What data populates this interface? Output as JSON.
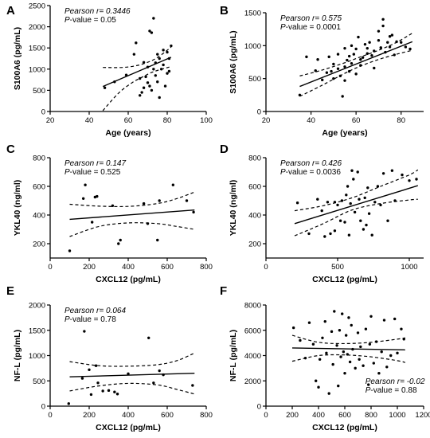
{
  "chart_data": [
    {
      "type": "scatter",
      "panel": "A",
      "xlabel": "Age (years)",
      "ylabel": "S100A6 (pg/mL)",
      "xlim": [
        20,
        100
      ],
      "ylim": [
        0,
        2500
      ],
      "xticks": [
        "20",
        "40",
        "60",
        "80",
        "100"
      ],
      "yticks": [
        "0",
        "500",
        "1000",
        "1500",
        "2000",
        "2500"
      ],
      "stats": {
        "r_label": "Pearson",
        "r_suffix": " r= 0.3446",
        "p_label": "P",
        "p_suffix": "-value = 0.05"
      },
      "stats_position": "top-left",
      "fit": {
        "x": [
          47,
          82
        ],
        "y": [
          590,
          1280
        ]
      },
      "ci_upper": {
        "x": [
          47,
          57,
          65,
          72,
          77,
          82
        ],
        "y": [
          1040,
          1040,
          1090,
          1200,
          1340,
          1520
        ]
      },
      "ci_lower": {
        "x": [
          47,
          55,
          62,
          68,
          73,
          82
        ],
        "y": [
          20,
          430,
          680,
          830,
          940,
          1060
        ]
      },
      "points": {
        "x": [
          48,
          53,
          59,
          63,
          64,
          66,
          66,
          67,
          68,
          68,
          69,
          70,
          70,
          71,
          71,
          72,
          72,
          73,
          73,
          74,
          74,
          75,
          75,
          76,
          76,
          77,
          78,
          78,
          79,
          80,
          80,
          81,
          81,
          82
        ],
        "y": [
          560,
          700,
          860,
          1350,
          1620,
          380,
          780,
          450,
          560,
          1160,
          820,
          680,
          1050,
          600,
          1900,
          500,
          1860,
          2200,
          1000,
          1150,
          850,
          1350,
          700,
          1250,
          330,
          1000,
          1100,
          1450,
          600,
          1400,
          900,
          950,
          1250,
          1550
        ]
      }
    },
    {
      "type": "scatter",
      "panel": "B",
      "xlabel": "Age (years)",
      "ylabel": "S100A6 (pg/mL)",
      "xlim": [
        20,
        90
      ],
      "ylim": [
        0,
        1500
      ],
      "xticks": [
        "20",
        "40",
        "60",
        "80"
      ],
      "yticks": [
        "0",
        "500",
        "1000",
        "1500"
      ],
      "stats": {
        "r_label": "Pearson",
        "r_suffix": " r= 0.575",
        "p_label": "P",
        "p_suffix": "-value = 0.0001"
      },
      "stats_position": "top-left",
      "fit": {
        "x": [
          35,
          85
        ],
        "y": [
          380,
          1060
        ]
      },
      "ci_upper": {
        "x": [
          35,
          45,
          55,
          62,
          70,
          78,
          85
        ],
        "y": [
          540,
          630,
          740,
          830,
          930,
          1050,
          1190
        ]
      },
      "ci_lower": {
        "x": [
          35,
          45,
          55,
          62,
          70,
          78,
          85
        ],
        "y": [
          230,
          400,
          580,
          690,
          790,
          870,
          930
        ]
      },
      "points": {
        "x": [
          35,
          38,
          42,
          43,
          45,
          47,
          48,
          49,
          50,
          50,
          52,
          52,
          53,
          54,
          55,
          55,
          55,
          56,
          57,
          57,
          58,
          58,
          59,
          60,
          60,
          61,
          62,
          62,
          63,
          64,
          65,
          65,
          66,
          67,
          68,
          68,
          70,
          70,
          71,
          72,
          72,
          73,
          74,
          75,
          75,
          76,
          77,
          78,
          80,
          82,
          84
        ],
        "y": [
          250,
          830,
          620,
          790,
          480,
          590,
          830,
          610,
          500,
          720,
          650,
          870,
          540,
          230,
          960,
          680,
          470,
          780,
          840,
          610,
          1000,
          730,
          870,
          570,
          950,
          1130,
          790,
          700,
          820,
          1020,
          880,
          960,
          1050,
          850,
          920,
          660,
          1220,
          1080,
          970,
          1300,
          1400,
          900,
          1050,
          1140,
          980,
          1160,
          860,
          1060,
          1050,
          980,
          950
        ]
      }
    },
    {
      "type": "scatter",
      "panel": "C",
      "xlabel": "CXCL12 (pg/mL)",
      "ylabel": "YKL40 (ng/ml)",
      "xlim": [
        0,
        800
      ],
      "ylim": [
        100,
        800
      ],
      "xticks": [
        "0",
        "200",
        "400",
        "600",
        "800"
      ],
      "yticks": [
        "200",
        "400",
        "600",
        "800"
      ],
      "stats": {
        "r_label": "Pearson",
        "r_suffix": " r= 0.147",
        "p_label": "P",
        "p_suffix": "-value = 0.525"
      },
      "stats_position": "top-left",
      "fit": {
        "x": [
          100,
          740
        ],
        "y": [
          370,
          435
        ]
      },
      "ci_upper": {
        "x": [
          100,
          250,
          400,
          550,
          650,
          740
        ],
        "y": [
          475,
          462,
          460,
          480,
          515,
          560
        ]
      },
      "ci_lower": {
        "x": [
          100,
          250,
          400,
          550,
          650,
          740
        ],
        "y": [
          250,
          320,
          345,
          340,
          320,
          300
        ]
      },
      "points": {
        "x": [
          100,
          170,
          180,
          215,
          230,
          240,
          320,
          350,
          360,
          480,
          500,
          550,
          560,
          630,
          700,
          735
        ],
        "y": [
          150,
          515,
          610,
          350,
          525,
          530,
          465,
          200,
          225,
          480,
          340,
          225,
          500,
          610,
          500,
          420
        ]
      }
    },
    {
      "type": "scatter",
      "panel": "D",
      "xlabel": "CXCL12 (pg/mL)",
      "ylabel": "YKL40 (ng/ml)",
      "xlim": [
        0,
        1100
      ],
      "ylim": [
        100,
        800
      ],
      "xticks": [
        "0",
        "500",
        "1000"
      ],
      "yticks": [
        "200",
        "400",
        "600",
        "800"
      ],
      "stats": {
        "r_label": "Pearson",
        "r_suffix": " r= 0.426",
        "p_label": "P",
        "p_suffix": "-value = 0.0036"
      },
      "stats_position": "top-left",
      "fit": {
        "x": [
          200,
          1060
        ],
        "y": [
          340,
          605
        ]
      },
      "ci_upper": {
        "x": [
          200,
          400,
          600,
          800,
          1000,
          1060
        ],
        "y": [
          430,
          465,
          520,
          600,
          680,
          715
        ]
      },
      "ci_lower": {
        "x": [
          200,
          400,
          600,
          800,
          1000,
          1060
        ],
        "y": [
          255,
          340,
          435,
          480,
          505,
          510
        ]
      },
      "points": {
        "x": [
          220,
          300,
          360,
          390,
          410,
          430,
          450,
          480,
          480,
          500,
          520,
          530,
          550,
          560,
          570,
          580,
          590,
          600,
          610,
          620,
          640,
          650,
          660,
          680,
          690,
          700,
          710,
          720,
          740,
          760,
          780,
          800,
          820,
          850,
          880,
          900,
          950,
          1000,
          1050
        ],
        "y": [
          485,
          270,
          510,
          430,
          250,
          490,
          270,
          490,
          290,
          470,
          360,
          500,
          350,
          540,
          600,
          260,
          480,
          710,
          650,
          420,
          700,
          510,
          360,
          300,
          520,
          330,
          590,
          410,
          260,
          490,
          600,
          470,
          690,
          360,
          710,
          500,
          680,
          640,
          650
        ]
      }
    },
    {
      "type": "scatter",
      "panel": "E",
      "xlabel": "CXCL12 (pg/mL)",
      "ylabel": "NF-L (pg/mL)",
      "xlim": [
        0,
        800
      ],
      "ylim": [
        0,
        2000
      ],
      "xticks": [
        "0",
        "200",
        "400",
        "600",
        "800"
      ],
      "yticks": [
        "0",
        "500",
        "1000",
        "1500",
        "2000"
      ],
      "stats": {
        "r_label": "Pearson",
        "r_suffix": " r= 0.064",
        "p_label": "P",
        "p_suffix": "-value = 0.78"
      },
      "stats_position": "top-left",
      "fit": {
        "x": [
          100,
          740
        ],
        "y": [
          580,
          650
        ]
      },
      "ci_upper": {
        "x": [
          100,
          250,
          400,
          550,
          650,
          740
        ],
        "y": [
          880,
          800,
          790,
          820,
          900,
          1050
        ]
      },
      "ci_lower": {
        "x": [
          100,
          250,
          400,
          550,
          650,
          740
        ],
        "y": [
          300,
          400,
          450,
          420,
          330,
          240
        ]
      },
      "points": {
        "x": [
          95,
          165,
          175,
          200,
          210,
          235,
          245,
          270,
          300,
          330,
          345,
          400,
          505,
          530,
          560,
          580,
          730
        ],
        "y": [
          50,
          550,
          1480,
          720,
          230,
          800,
          460,
          300,
          310,
          280,
          240,
          640,
          1350,
          460,
          700,
          620,
          410
        ]
      }
    },
    {
      "type": "scatter",
      "panel": "F",
      "xlabel": "CXCL12 (pg/mL)",
      "ylabel": "NF-L (pg/mL)",
      "xlim": [
        0,
        1200
      ],
      "ylim": [
        0,
        8000
      ],
      "xticks": [
        "0",
        "200",
        "400",
        "600",
        "800",
        "1000",
        "1200"
      ],
      "yticks": [
        "0",
        "2000",
        "4000",
        "6000",
        "8000"
      ],
      "stats": {
        "r_label": "Pearson",
        "r_suffix": " r= -0.02",
        "p_label": "P",
        "p_suffix": "-value = 0.88"
      },
      "stats_position": "bottom-right",
      "fit": {
        "x": [
          200,
          1060
        ],
        "y": [
          4600,
          4450
        ]
      },
      "ci_upper": {
        "x": [
          200,
          400,
          600,
          800,
          1000,
          1060
        ],
        "y": [
          5600,
          5050,
          4950,
          5050,
          5300,
          5400
        ]
      },
      "ci_lower": {
        "x": [
          200,
          400,
          600,
          800,
          1000,
          1060
        ],
        "y": [
          3550,
          4000,
          4050,
          3900,
          3600,
          3450
        ]
      },
      "points": {
        "x": [
          210,
          260,
          300,
          330,
          360,
          380,
          400,
          410,
          430,
          450,
          460,
          480,
          500,
          510,
          520,
          540,
          550,
          560,
          570,
          580,
          590,
          600,
          610,
          620,
          630,
          640,
          650,
          660,
          680,
          700,
          710,
          720,
          740,
          760,
          780,
          790,
          800,
          820,
          840,
          860,
          880,
          900,
          920,
          950,
          980,
          1000,
          1030,
          1050
        ],
        "y": [
          6200,
          5200,
          3800,
          6600,
          4900,
          2000,
          1500,
          3700,
          5400,
          6700,
          4200,
          1000,
          5900,
          3300,
          7500,
          4800,
          1600,
          6000,
          3900,
          7300,
          4300,
          2600,
          5600,
          4100,
          7000,
          3500,
          6400,
          4500,
          3000,
          5800,
          3700,
          4700,
          3200,
          6100,
          1700,
          4900,
          7100,
          3400,
          5100,
          2600,
          4300,
          6800,
          3100,
          4000,
          6900,
          4200,
          6100,
          5300
        ]
      }
    }
  ]
}
